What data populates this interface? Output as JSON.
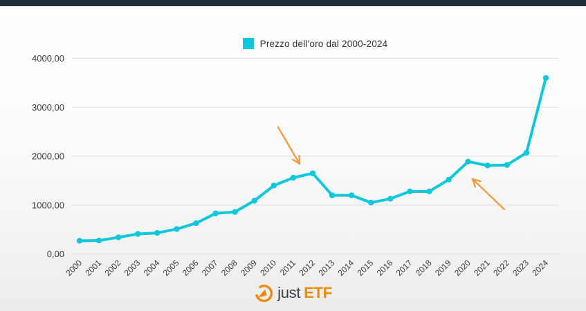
{
  "page": {
    "top_bar_color": "#212f3a"
  },
  "legend": {
    "label": "Prezzo dell'oro dal 2000-2024",
    "swatch_color": "#0cc8da"
  },
  "chart_data": {
    "type": "line",
    "title": "Prezzo dell'oro dal 2000-2024",
    "series_name": "Prezzo dell'oro",
    "x": [
      2000,
      2001,
      2002,
      2003,
      2004,
      2005,
      2006,
      2007,
      2008,
      2009,
      2010,
      2011,
      2012,
      2013,
      2014,
      2015,
      2016,
      2017,
      2018,
      2019,
      2020,
      2021,
      2022,
      2023,
      2024
    ],
    "values": [
      270,
      275,
      340,
      410,
      430,
      510,
      630,
      830,
      860,
      1090,
      1400,
      1560,
      1650,
      1200,
      1200,
      1050,
      1130,
      1280,
      1280,
      1520,
      1890,
      1810,
      1820,
      2070,
      3600
    ],
    "xlabel": "",
    "ylabel": "",
    "ylim": [
      0,
      4000
    ],
    "yticks": [
      0,
      1000,
      2000,
      3000,
      4000
    ],
    "ytick_labels": [
      "0,00",
      "1000,00",
      "2000,00",
      "3000,00",
      "4000,00"
    ],
    "grid": true,
    "legend_position": "top-center",
    "line_color": "#0cc8da",
    "point_color": "#0cc8da",
    "grid_color": "#e1e1e1",
    "annotations": [
      {
        "name": "arrow-pointing-to-2012-peak",
        "shape": "arrow",
        "color": "#f59b40",
        "from": {
          "x": 402,
          "y": 184
        },
        "to": {
          "x": 433,
          "y": 237
        }
      },
      {
        "name": "arrow-pointing-to-2020-value",
        "shape": "arrow",
        "color": "#f59b40",
        "from": {
          "x": 729,
          "y": 303
        },
        "to": {
          "x": 683,
          "y": 259
        }
      }
    ]
  },
  "logo": {
    "prefix": "just",
    "suffix": "ETF",
    "orange": "#ef8a00",
    "dark": "#3d4247"
  }
}
